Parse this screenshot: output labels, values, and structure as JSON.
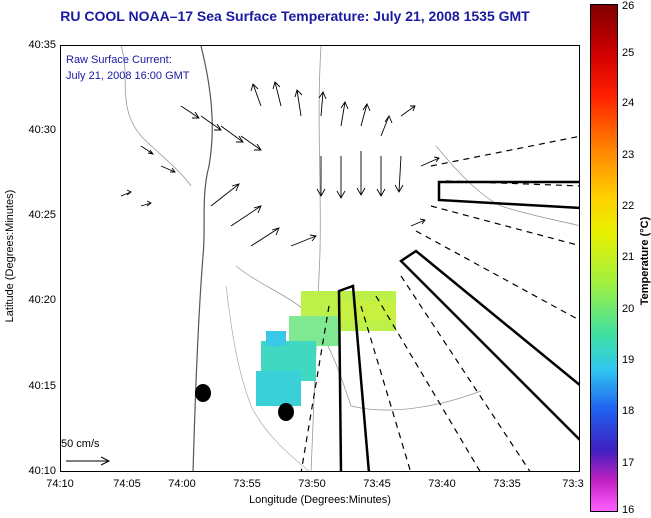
{
  "title": "RU COOL  NOAA–17  Sea Surface Temperature:  July 21, 2008 1535 GMT",
  "current_label_line1": "Raw Surface Current:",
  "current_label_line2": "July 21, 2008 16:00 GMT",
  "scale_label": "50 cm/s",
  "ylabel": "Latitude (Degrees:Minutes)",
  "xlabel": "Longitude (Degrees:Minutes)",
  "yticks": [
    "40:35",
    "40:30",
    "40:25",
    "40:20",
    "40:15",
    "40:10"
  ],
  "xticks": [
    "74:10",
    "74:05",
    "74:00",
    "73:55",
    "73:50",
    "73:45",
    "73:40",
    "73:35",
    "73:3"
  ],
  "colorbar": {
    "label": "Temperature (°C)",
    "ticks": [
      "26",
      "25",
      "24",
      "23",
      "22",
      "21",
      "20",
      "19",
      "18",
      "17",
      "16"
    ],
    "range": [
      16,
      26
    ]
  },
  "colors": {
    "title": "#1a1aa0",
    "sst_cold": "#3ad0d8",
    "sst_mid": "#7fe890",
    "sst_warm": "#c8f040"
  }
}
